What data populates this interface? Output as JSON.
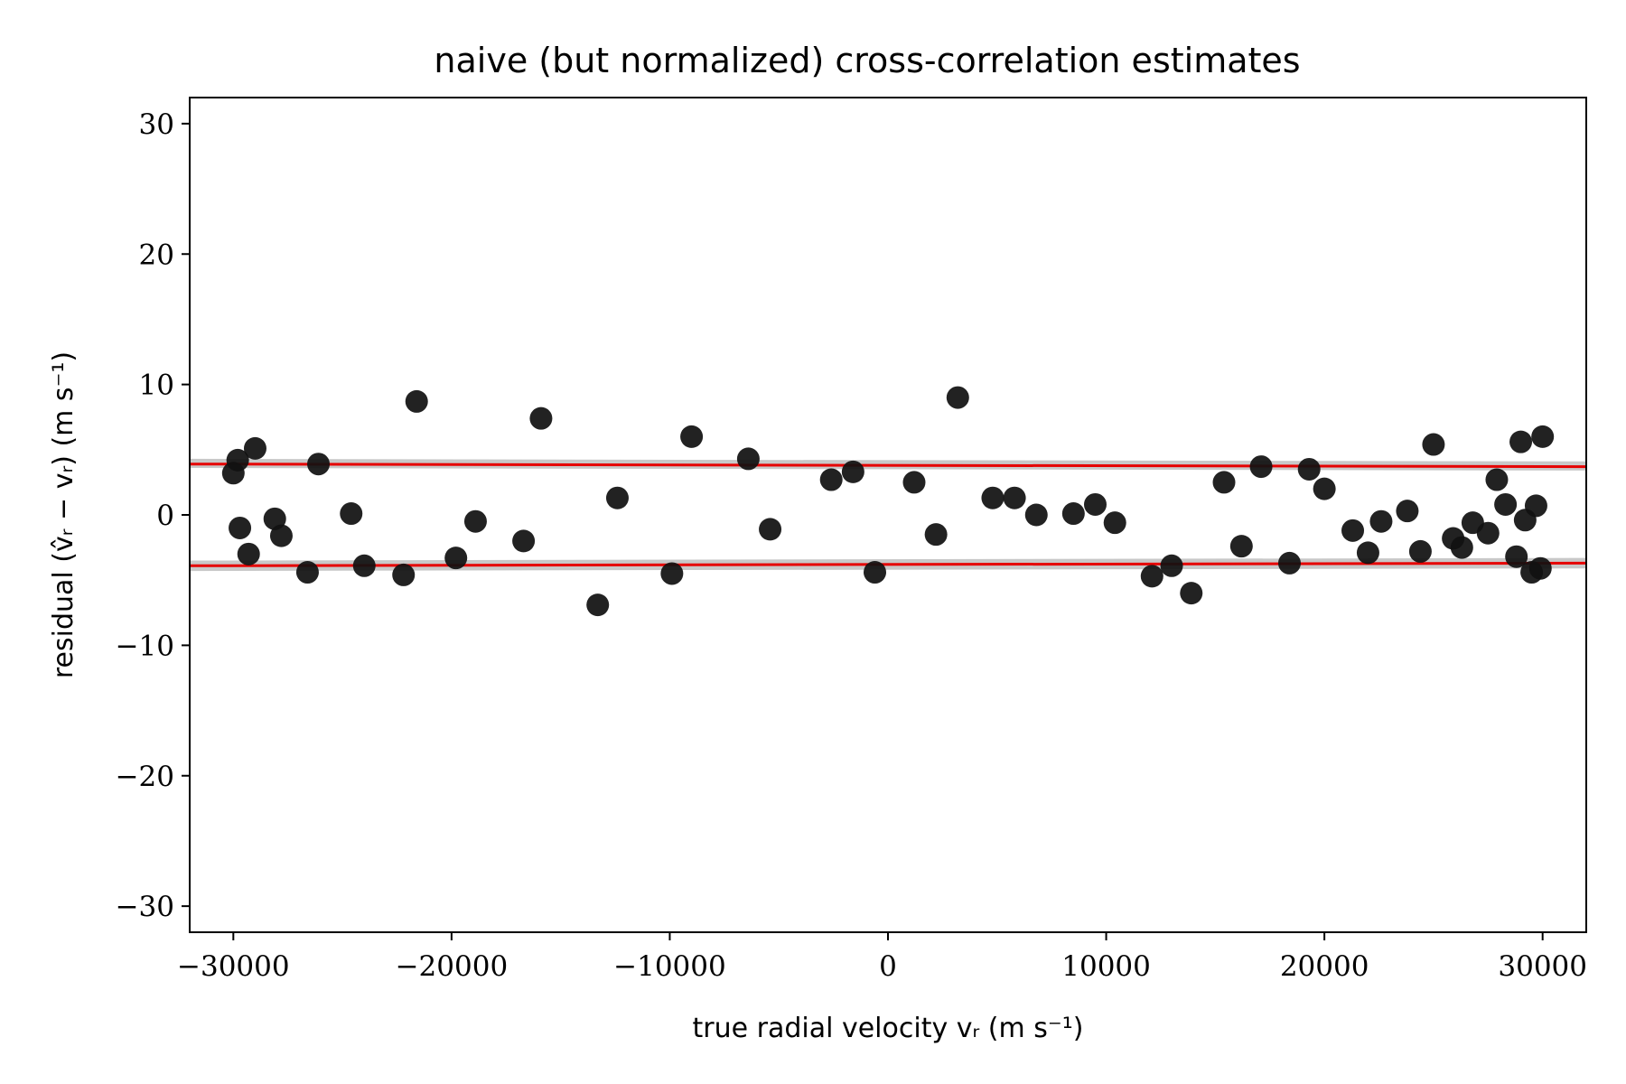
{
  "chart_data": {
    "type": "scatter",
    "title": "naive (but normalized) cross-correlation estimates",
    "xlabel": "true radial velocity vᵣ (m s⁻¹)",
    "ylabel": "residual (v̂ᵣ − vᵣ) (m s⁻¹)",
    "xlim": [
      -32000,
      32000
    ],
    "ylim": [
      -32,
      32
    ],
    "xticks": [
      -30000,
      -20000,
      -10000,
      0,
      10000,
      20000,
      30000
    ],
    "xtick_labels": [
      "−30000",
      "−20000",
      "−10000",
      "0",
      "10000",
      "20000",
      "30000"
    ],
    "yticks": [
      -30,
      -20,
      -10,
      0,
      10,
      20,
      30
    ],
    "ytick_labels": [
      "−30",
      "−20",
      "−10",
      "0",
      "10",
      "20",
      "30"
    ],
    "grid": false,
    "colors": {
      "points": "#111111",
      "lines": "#e60000",
      "bands": "#c8c8c8"
    },
    "points": {
      "x": [
        -30000,
        -29800,
        -29700,
        -29300,
        -29000,
        -28100,
        -27800,
        -26600,
        -26100,
        -24600,
        -24000,
        -22200,
        -21600,
        -19800,
        -18900,
        -16700,
        -15900,
        -13300,
        -12400,
        -9900,
        -9000,
        -6400,
        -5400,
        -2600,
        -1600,
        -600,
        1200,
        2200,
        3200,
        4800,
        5800,
        6800,
        8500,
        9500,
        10400,
        12100,
        13000,
        13900,
        15400,
        16200,
        17100,
        18400,
        19300,
        20000,
        21300,
        22000,
        22600,
        23800,
        24400,
        25000,
        25900,
        26300,
        26800,
        27500,
        27900,
        28300,
        28800,
        29000,
        29200,
        29500,
        29700,
        29900,
        30000
      ],
      "y": [
        3.2,
        4.2,
        -1.0,
        -3.0,
        5.1,
        -0.3,
        -1.6,
        -4.4,
        3.9,
        0.1,
        -3.9,
        -4.6,
        8.7,
        -3.3,
        -0.5,
        -2.0,
        7.4,
        -6.9,
        1.3,
        -4.5,
        6.0,
        4.3,
        -1.1,
        2.7,
        3.3,
        -4.4,
        2.5,
        -1.5,
        9.0,
        1.3,
        1.3,
        0.0,
        0.1,
        0.8,
        -0.6,
        -4.7,
        -3.9,
        -6.0,
        2.5,
        -2.4,
        3.7,
        -3.7,
        3.5,
        2.0,
        -1.2,
        -2.9,
        -0.5,
        0.3,
        -2.8,
        5.4,
        -1.8,
        -2.5,
        -0.6,
        -1.4,
        2.7,
        0.8,
        -3.2,
        5.6,
        -0.4,
        -4.4,
        0.7,
        -4.1,
        6.0
      ]
    },
    "upper_line": {
      "x": [
        -32000,
        32000
      ],
      "y": [
        3.9,
        3.7
      ]
    },
    "lower_line": {
      "x": [
        -32000,
        32000
      ],
      "y": [
        -3.9,
        -3.7
      ]
    },
    "upper_band": {
      "x": [
        -32000,
        32000
      ],
      "y_low": [
        3.6,
        3.4
      ],
      "y_high": [
        4.3,
        4.1
      ]
    },
    "lower_band": {
      "x": [
        -32000,
        32000
      ],
      "y_low": [
        -4.3,
        -4.1
      ],
      "y_high": [
        -3.5,
        -3.3
      ]
    }
  }
}
